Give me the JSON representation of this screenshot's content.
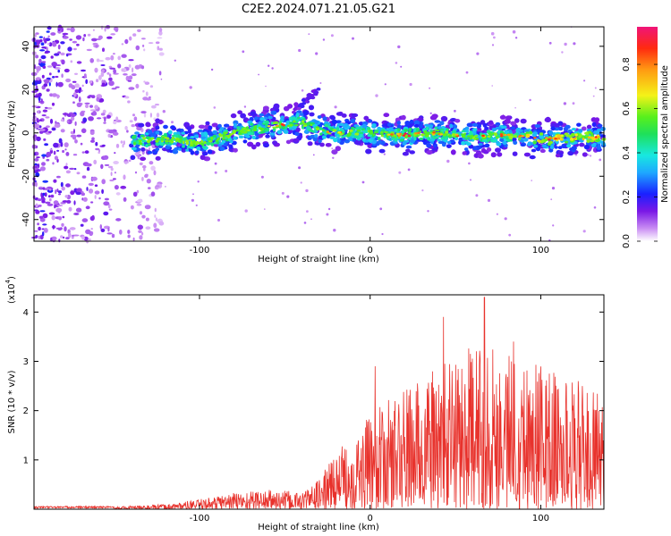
{
  "title": "C2E2.2024.071.21.05.G21",
  "chart_data": [
    {
      "type": "heatmap",
      "xlabel": "Height of straight line (km)",
      "ylabel": "Frequency (Hz)",
      "xlim": [
        -197,
        137
      ],
      "ylim": [
        -50,
        49
      ],
      "xticks": [
        -100,
        0,
        100
      ],
      "yticks": [
        -40,
        -20,
        0,
        20,
        40
      ],
      "colorbar": {
        "label": "Normalized spectral amplitude",
        "range": [
          0,
          0.97
        ],
        "ticks": [
          0.0,
          0.2,
          0.4,
          0.6,
          0.8
        ]
      },
      "ridge": {
        "x": [
          -140,
          -120,
          -100,
          -80,
          -60,
          -40,
          -30,
          -20,
          -10,
          0,
          20,
          40,
          60,
          80,
          100,
          120,
          135
        ],
        "y": [
          -4,
          -3,
          -5,
          0,
          3,
          5,
          2,
          0,
          0,
          0,
          -1,
          0,
          -2,
          -1,
          -3,
          -2,
          -2
        ]
      },
      "secondary_feature": {
        "x": [
          -45,
          -30
        ],
        "y": [
          10,
          20
        ]
      }
    },
    {
      "type": "line",
      "xlabel": "Height of straight line (km)",
      "ylabel": "SNR (10 * v/v)",
      "y_multiplier": "(x10",
      "y_multiplier_exp": "4",
      "y_multiplier_close": ")",
      "xlim": [
        -197,
        137
      ],
      "ylim": [
        0,
        4.35
      ],
      "xticks": [
        -100,
        0,
        100
      ],
      "yticks": [
        1,
        2,
        3,
        4
      ],
      "color": "#e8322c",
      "envelope": {
        "x": [
          -197,
          -150,
          -120,
          -100,
          -80,
          -60,
          -40,
          -30,
          -20,
          -10,
          0,
          10,
          20,
          30,
          40,
          50,
          60,
          70,
          80,
          90,
          100,
          110,
          120,
          130,
          137
        ],
        "y": [
          0.05,
          0.05,
          0.1,
          0.2,
          0.35,
          0.4,
          0.35,
          0.6,
          1.2,
          1.5,
          1.9,
          2.2,
          2.5,
          2.7,
          2.9,
          3.2,
          3.3,
          3.4,
          3.3,
          3.2,
          3.0,
          2.8,
          2.6,
          2.4,
          2.3
        ]
      },
      "peaks": [
        {
          "x": 3,
          "y": 2.9
        },
        {
          "x": 43,
          "y": 3.9
        },
        {
          "x": 67,
          "y": 4.3
        },
        {
          "x": 84,
          "y": 3.4
        },
        {
          "x": 122,
          "y": 2.6
        }
      ]
    }
  ]
}
